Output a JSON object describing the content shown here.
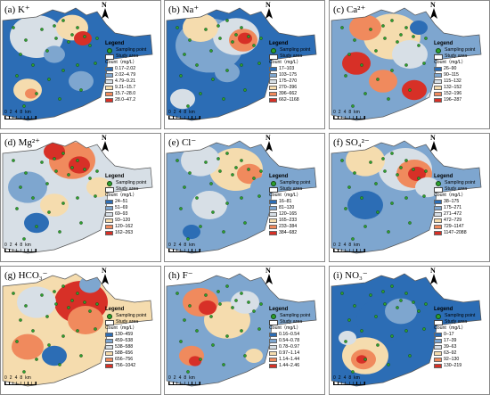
{
  "legend_common": {
    "title": "Legend",
    "sampling_point": "Sampling point",
    "study_area": "Study area",
    "count_label": "Count（mg/L）"
  },
  "scale": {
    "ticks": [
      "0",
      "2",
      "4",
      "8"
    ],
    "unit": "km"
  },
  "north_label": "N",
  "colors": [
    "#2c6db5",
    "#7ea6cf",
    "#d7dfe6",
    "#f5dcae",
    "#f08a5d",
    "#d73027"
  ],
  "panels": [
    {
      "label": "(a) K⁺",
      "ranges": [
        "0.17–2.02",
        "2.02–4.79",
        "4.79–9.21",
        "9.21–15.7",
        "15.7–28.0",
        "28.0–47.2"
      ]
    },
    {
      "label": "(b) Na⁺",
      "ranges": [
        "17–103",
        "103–175",
        "175–270",
        "270–396",
        "396–662",
        "662–1168"
      ]
    },
    {
      "label": "(c) Ca²⁺",
      "ranges": [
        "26–90",
        "90–115",
        "115–132",
        "132–152",
        "152–196",
        "196–287"
      ]
    },
    {
      "label": "(d) Mg²⁺",
      "ranges": [
        "24–51",
        "51–69",
        "69–93",
        "93–120",
        "120–162",
        "162–263"
      ]
    },
    {
      "label": "(e) Cl⁻",
      "ranges": [
        "16–81",
        "81–120",
        "120–165",
        "165–233",
        "233–384",
        "384–682"
      ]
    },
    {
      "label": "(f) SO₄²⁻",
      "ranges": [
        "38–175",
        "175–271",
        "271–472",
        "472–729",
        "729–1147",
        "1147–2088"
      ]
    },
    {
      "label": "(g) HCO₃⁻",
      "ranges": [
        "130–459",
        "459–538",
        "538–588",
        "588–656",
        "656–756",
        "756–1042"
      ]
    },
    {
      "label": "(h) F⁻",
      "ranges": [
        "0.16–0.54",
        "0.54–0.78",
        "0.78–0.97",
        "0.97–1.14",
        "1.14–1.44",
        "1.44–2.46"
      ]
    },
    {
      "label": "(i) NO₃⁻",
      "ranges": [
        "0–17",
        "17–39",
        "39–63",
        "63–92",
        "92–130",
        "130–219"
      ]
    }
  ]
}
